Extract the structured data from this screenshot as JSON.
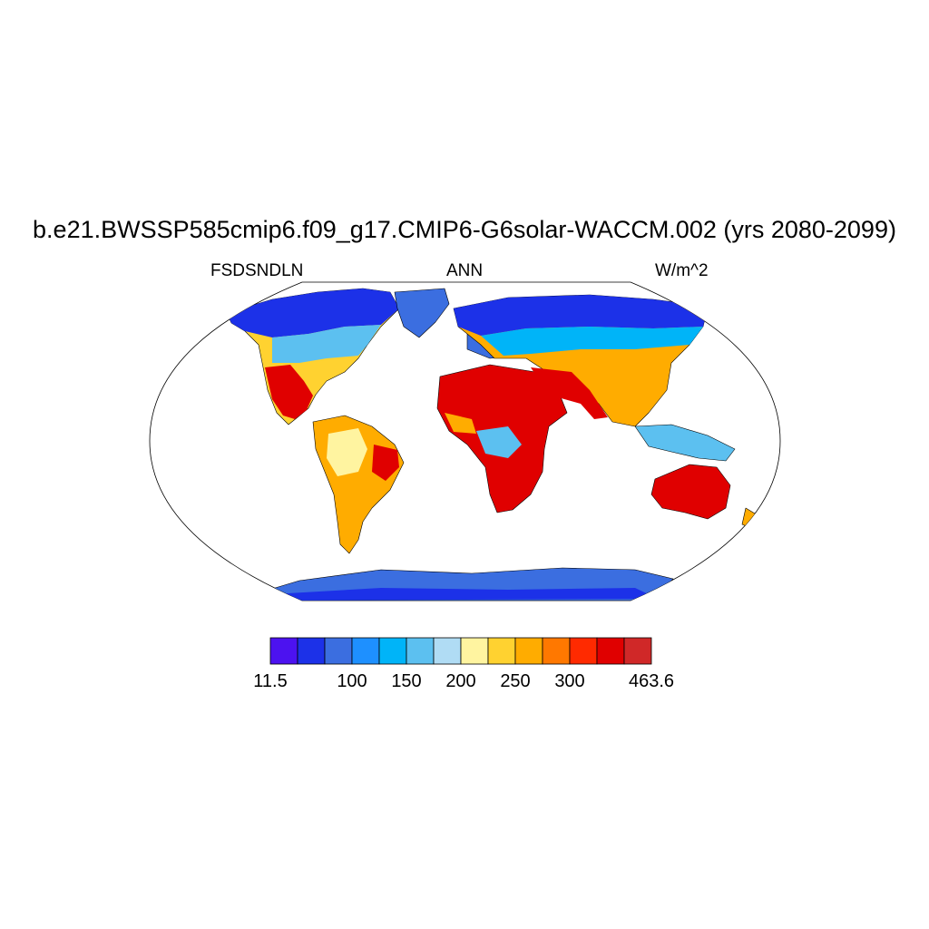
{
  "title": "b.e21.BWSSP585cmip6.f09_g17.CMIP6-G6solar-WACCM.002 (yrs 2080-2099)",
  "left_label": "FSDSNDLN",
  "center_label": "ANN",
  "right_label": "W/m^2",
  "map": {
    "projection": "robinson",
    "field": "FSDSNDLN",
    "season": "ANN",
    "units": "W/m^2"
  },
  "colorbar": {
    "colors": [
      "#4c12f0",
      "#1c31e8",
      "#3b6ee0",
      "#1e90ff",
      "#00b4f8",
      "#5cc0f0",
      "#b0dcf4",
      "#fff4a0",
      "#ffd230",
      "#ffac00",
      "#ff7800",
      "#ff2a00",
      "#e00000",
      "#d02828"
    ],
    "labels": [
      {
        "index": 0,
        "text": "11.5"
      },
      {
        "index": 2,
        "text": "100"
      },
      {
        "index": 3,
        "text": "150"
      },
      {
        "index": 4,
        "text": "200"
      },
      {
        "index": 5,
        "text": "250"
      },
      {
        "index": 6,
        "text": "300"
      },
      {
        "index": 8,
        "text": "463.6"
      }
    ]
  }
}
